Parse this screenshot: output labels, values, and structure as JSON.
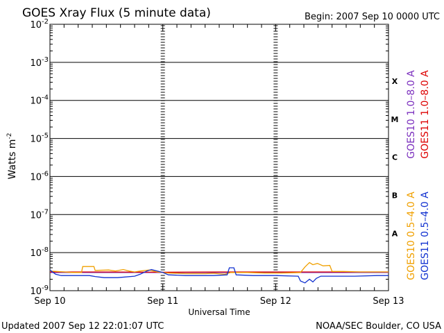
{
  "chart_data": {
    "type": "line",
    "title": "GOES Xray Flux (5 minute data)",
    "begin_label": "Begin:  2007 Sep 10 0000 UTC",
    "xlabel": "Universal Time",
    "ylabel": "Watts m",
    "ylabel_sup": "-2",
    "x_ticks": [
      "Sep 10",
      "Sep 11",
      "Sep 12",
      "Sep 13"
    ],
    "x_range_days": [
      0,
      3
    ],
    "y_scale": "log",
    "ylim": [
      1e-09,
      0.01
    ],
    "y_ticks": [
      {
        "base": "10",
        "exp": "-2",
        "value": 0.01
      },
      {
        "base": "10",
        "exp": "-3",
        "value": 0.001
      },
      {
        "base": "10",
        "exp": "-4",
        "value": 0.0001
      },
      {
        "base": "10",
        "exp": "-5",
        "value": 1e-05
      },
      {
        "base": "10",
        "exp": "-6",
        "value": 1e-06
      },
      {
        "base": "10",
        "exp": "-7",
        "value": 1e-07
      },
      {
        "base": "10",
        "exp": "-8",
        "value": 1e-08
      },
      {
        "base": "10",
        "exp": "-9",
        "value": 1e-09
      }
    ],
    "flare_classes": [
      {
        "label": "X",
        "value": 0.00032
      },
      {
        "label": "M",
        "value": 3.2e-05
      },
      {
        "label": "C",
        "value": 3.2e-06
      },
      {
        "label": "B",
        "value": 3.2e-07
      },
      {
        "label": "A",
        "value": 3.2e-08
      }
    ],
    "series": [
      {
        "name": "GOES10 1.0–8.0 A",
        "color": "#7b2fbe",
        "points": [
          [
            0.0,
            3e-09
          ],
          [
            3.0,
            3e-09
          ]
        ]
      },
      {
        "name": "GOES11 1.0–8.0 A",
        "color": "#dd0000",
        "points": [
          [
            0.0,
            3.1e-09
          ],
          [
            0.5,
            3.1e-09
          ],
          [
            1.0,
            3.05e-09
          ],
          [
            1.5,
            3.1e-09
          ],
          [
            2.0,
            3.1e-09
          ],
          [
            2.5,
            3.1e-09
          ],
          [
            3.0,
            3.1e-09
          ]
        ]
      },
      {
        "name": "GOES10 0.5–4.0 A",
        "color": "#f0a000",
        "points": [
          [
            0.0,
            3.3e-09
          ],
          [
            0.2,
            3e-09
          ],
          [
            0.28,
            3e-09
          ],
          [
            0.29,
            4.3e-09
          ],
          [
            0.39,
            4.3e-09
          ],
          [
            0.4,
            3.4e-09
          ],
          [
            0.52,
            3.5e-09
          ],
          [
            0.58,
            3.3e-09
          ],
          [
            0.65,
            3.6e-09
          ],
          [
            0.7,
            3.3e-09
          ],
          [
            0.75,
            3.1e-09
          ],
          [
            0.8,
            3.3e-09
          ],
          [
            0.88,
            3.5e-09
          ],
          [
            0.95,
            3.1e-09
          ],
          [
            1.05,
            2.9e-09
          ],
          [
            1.2,
            2.8e-09
          ],
          [
            1.38,
            2.8e-09
          ],
          [
            1.45,
            2.85e-09
          ],
          [
            1.55,
            2.7e-09
          ],
          [
            1.6,
            3e-09
          ],
          [
            1.75,
            3e-09
          ],
          [
            1.9,
            2.9e-09
          ],
          [
            2.05,
            2.9e-09
          ],
          [
            2.15,
            2.95e-09
          ],
          [
            2.22,
            3e-09
          ],
          [
            2.26,
            4.2e-09
          ],
          [
            2.3,
            5.5e-09
          ],
          [
            2.33,
            4.8e-09
          ],
          [
            2.37,
            5.2e-09
          ],
          [
            2.42,
            4.5e-09
          ],
          [
            2.48,
            4.6e-09
          ],
          [
            2.5,
            3.2e-09
          ],
          [
            2.6,
            3.2e-09
          ],
          [
            2.75,
            3.1e-09
          ],
          [
            3.0,
            3.1e-09
          ]
        ]
      },
      {
        "name": "GOES11 0.5–4.0 A",
        "color": "#1030d0",
        "points": [
          [
            0.0,
            3.5e-09
          ],
          [
            0.05,
            2.7e-09
          ],
          [
            0.1,
            2.5e-09
          ],
          [
            0.35,
            2.5e-09
          ],
          [
            0.4,
            2.35e-09
          ],
          [
            0.48,
            2.2e-09
          ],
          [
            0.6,
            2.2e-09
          ],
          [
            0.75,
            2.4e-09
          ],
          [
            0.8,
            2.7e-09
          ],
          [
            0.86,
            3.3e-09
          ],
          [
            0.9,
            3.6e-09
          ],
          [
            0.95,
            3.3e-09
          ],
          [
            1.0,
            3e-09
          ],
          [
            1.05,
            2.6e-09
          ],
          [
            1.2,
            2.5e-09
          ],
          [
            1.35,
            2.5e-09
          ],
          [
            1.45,
            2.5e-09
          ],
          [
            1.57,
            2.6e-09
          ],
          [
            1.59,
            4e-09
          ],
          [
            1.63,
            4e-09
          ],
          [
            1.65,
            2.6e-09
          ],
          [
            1.8,
            2.5e-09
          ],
          [
            2.0,
            2.5e-09
          ],
          [
            2.2,
            2.4e-09
          ],
          [
            2.22,
            1.8e-09
          ],
          [
            2.26,
            1.6e-09
          ],
          [
            2.3,
            2e-09
          ],
          [
            2.33,
            1.7e-09
          ],
          [
            2.36,
            2.1e-09
          ],
          [
            2.4,
            2.4e-09
          ],
          [
            2.55,
            2.4e-09
          ],
          [
            2.7,
            2.4e-09
          ],
          [
            2.9,
            2.5e-09
          ],
          [
            3.0,
            2.5e-09
          ]
        ]
      }
    ]
  },
  "footer": {
    "updated": "Updated 2007 Sep 12 22:01:07 UTC",
    "credit": "NOAA/SEC Boulder, CO USA"
  }
}
